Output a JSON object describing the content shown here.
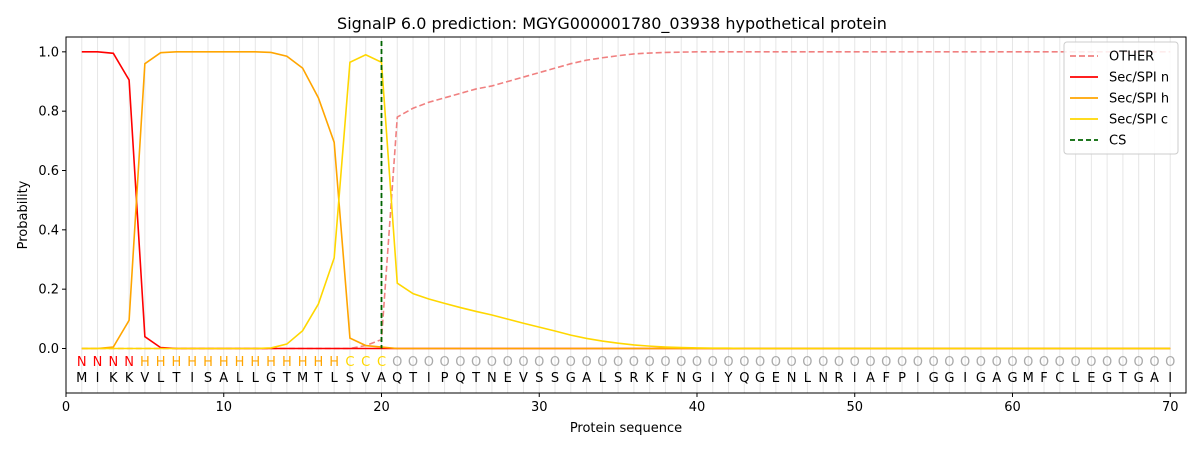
{
  "chart_data": {
    "type": "line",
    "title": "SignalP 6.0 prediction: MGYG000001780_03938 hypothetical protein",
    "xlabel": "Protein sequence",
    "ylabel": "Probability",
    "xlim": [
      0,
      71
    ],
    "ylim": [
      -0.15,
      1.05
    ],
    "xticks": [
      0,
      10,
      20,
      30,
      40,
      50,
      60,
      70
    ],
    "yticks": [
      0.0,
      0.2,
      0.4,
      0.6,
      0.8,
      1.0
    ],
    "grid": "vertical lines at each residue",
    "legend_position": "top-right",
    "x": [
      1,
      2,
      3,
      4,
      5,
      6,
      7,
      8,
      9,
      10,
      11,
      12,
      13,
      14,
      15,
      16,
      17,
      18,
      19,
      20,
      21,
      22,
      23,
      24,
      25,
      26,
      27,
      28,
      29,
      30,
      31,
      32,
      33,
      34,
      35,
      36,
      37,
      38,
      39,
      40,
      41,
      42,
      43,
      44,
      45,
      46,
      47,
      48,
      49,
      50,
      51,
      52,
      53,
      54,
      55,
      56,
      57,
      58,
      59,
      60,
      61,
      62,
      63,
      64,
      65,
      66,
      67,
      68,
      69,
      70
    ],
    "sequence": [
      "M",
      "I",
      "K",
      "K",
      "V",
      "L",
      "T",
      "I",
      "S",
      "A",
      "L",
      "L",
      "G",
      "T",
      "M",
      "T",
      "L",
      "S",
      "V",
      "A",
      "Q",
      "T",
      "I",
      "P",
      "Q",
      "T",
      "N",
      "E",
      "V",
      "S",
      "S",
      "G",
      "A",
      "L",
      "S",
      "R",
      "K",
      "F",
      "N",
      "G",
      "I",
      "Y",
      "Q",
      "G",
      "E",
      "N",
      "L",
      "N",
      "R",
      "I",
      "A",
      "F",
      "P",
      "I",
      "G",
      "G",
      "I",
      "G",
      "A",
      "G",
      "M",
      "F",
      "C",
      "L",
      "E",
      "G",
      "T",
      "G",
      "A",
      "I"
    ],
    "region_labels": [
      "N",
      "N",
      "N",
      "N",
      "H",
      "H",
      "H",
      "H",
      "H",
      "H",
      "H",
      "H",
      "H",
      "H",
      "H",
      "H",
      "H",
      "C",
      "C",
      "C",
      "O",
      "O",
      "O",
      "O",
      "O",
      "O",
      "O",
      "O",
      "O",
      "O",
      "O",
      "O",
      "O",
      "O",
      "O",
      "O",
      "O",
      "O",
      "O",
      "O",
      "O",
      "O",
      "O",
      "O",
      "O",
      "O",
      "O",
      "O",
      "O",
      "O",
      "O",
      "O",
      "O",
      "O",
      "O",
      "O",
      "O",
      "O",
      "O",
      "O",
      "O",
      "O",
      "O",
      "O",
      "O",
      "O",
      "O",
      "O",
      "O",
      "O"
    ],
    "region_colors": {
      "N": "#ff0000",
      "H": "#ffa500",
      "C": "#ffd700",
      "O": "#aaaaaa"
    },
    "cleavage_site": 20,
    "series": [
      {
        "name": "OTHER",
        "color": "#f08080",
        "dash": "dashed",
        "values": [
          0,
          0,
          0,
          0,
          0,
          0,
          0,
          0,
          0,
          0,
          0,
          0,
          0,
          0,
          0,
          0,
          0,
          0,
          0.01,
          0.03,
          0.78,
          0.81,
          0.83,
          0.845,
          0.86,
          0.875,
          0.885,
          0.9,
          0.915,
          0.93,
          0.945,
          0.96,
          0.972,
          0.98,
          0.987,
          0.993,
          0.996,
          0.998,
          0.999,
          1.0,
          1.0,
          1.0,
          1.0,
          1.0,
          1.0,
          1.0,
          1.0,
          1.0,
          1.0,
          1.0,
          1.0,
          1.0,
          1.0,
          1.0,
          1.0,
          1.0,
          1.0,
          1.0,
          1.0,
          1.0,
          1.0,
          1.0,
          1.0,
          1.0,
          1.0,
          1.0,
          1.0,
          1.0,
          1.0,
          1.0
        ]
      },
      {
        "name": "Sec/SPI n",
        "color": "#ff0000",
        "dash": "solid",
        "values": [
          1.0,
          1.0,
          0.995,
          0.905,
          0.04,
          0.003,
          0,
          0,
          0,
          0,
          0,
          0,
          0,
          0,
          0,
          0,
          0,
          0,
          0,
          0,
          0,
          0,
          0,
          0,
          0,
          0,
          0,
          0,
          0,
          0,
          0,
          0,
          0,
          0,
          0,
          0,
          0,
          0,
          0,
          0,
          0,
          0,
          0,
          0,
          0,
          0,
          0,
          0,
          0,
          0,
          0,
          0,
          0,
          0,
          0,
          0,
          0,
          0,
          0,
          0,
          0,
          0,
          0,
          0,
          0,
          0,
          0,
          0,
          0,
          0
        ]
      },
      {
        "name": "Sec/SPI h",
        "color": "#ffa500",
        "dash": "solid",
        "values": [
          0,
          0,
          0.005,
          0.095,
          0.96,
          0.997,
          1.0,
          1.0,
          1.0,
          1.0,
          1.0,
          1.0,
          0.998,
          0.985,
          0.945,
          0.845,
          0.695,
          0.035,
          0.01,
          0.005,
          0,
          0,
          0,
          0,
          0,
          0,
          0,
          0,
          0,
          0,
          0,
          0,
          0,
          0,
          0,
          0,
          0,
          0,
          0,
          0,
          0,
          0,
          0,
          0,
          0,
          0,
          0,
          0,
          0,
          0,
          0,
          0,
          0,
          0,
          0,
          0,
          0,
          0,
          0,
          0,
          0,
          0,
          0,
          0,
          0,
          0,
          0,
          0,
          0,
          0
        ]
      },
      {
        "name": "Sec/SPI c",
        "color": "#ffd700",
        "dash": "solid",
        "values": [
          0,
          0,
          0,
          0,
          0,
          0,
          0,
          0,
          0,
          0,
          0,
          0,
          0.002,
          0.015,
          0.06,
          0.15,
          0.305,
          0.965,
          0.99,
          0.965,
          0.22,
          0.185,
          0.167,
          0.152,
          0.138,
          0.125,
          0.113,
          0.099,
          0.085,
          0.072,
          0.059,
          0.045,
          0.034,
          0.025,
          0.018,
          0.012,
          0.008,
          0.005,
          0.003,
          0.002,
          0.001,
          0.001,
          0,
          0,
          0,
          0,
          0,
          0,
          0,
          0,
          0,
          0,
          0,
          0,
          0,
          0,
          0,
          0,
          0,
          0,
          0,
          0,
          0,
          0,
          0,
          0,
          0,
          0,
          0,
          0
        ]
      }
    ],
    "legend": [
      "OTHER",
      "Sec/SPI n",
      "Sec/SPI h",
      "Sec/SPI c",
      "CS"
    ],
    "cs_color": "#006400"
  }
}
